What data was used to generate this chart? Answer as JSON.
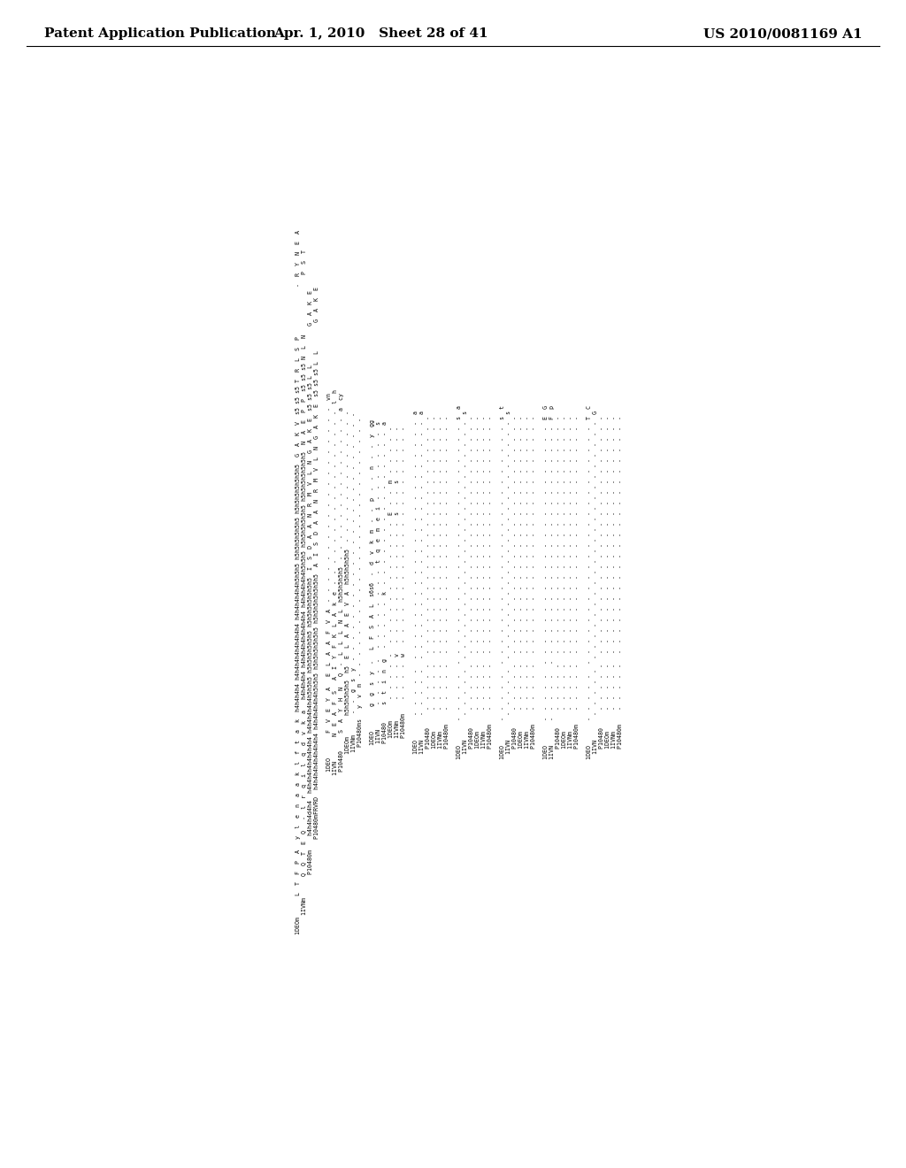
{
  "header_left": "Patent Application Publication",
  "header_center": "Apr. 1, 2010   Sheet 28 of 41",
  "header_right": "US 2010/0081169 A1",
  "page_width": 10.24,
  "page_height": 13.2,
  "dpi": 100,
  "content_fontsize": 5.0,
  "row_labels": [
    "1DEOm",
    "1IVNm",
    "P10480m",
    "1DEO",
    "1IVN",
    "P10480",
    "1DEOm",
    "1IVNm",
    "P10480ms"
  ],
  "alignment_block": [
    "L T F P A  y  l  e  n  a  a  k  l  f  t  a  k  h4h4h4h4 h4h4h4h4h4h4h4h4 h4h4h4h4h4b5b5b5 b5b5b5b5b5b5 b5b5b5b5b5b5b5  G  A  K  V  s5s5s5  s5  T  R  L  S  P  -  -  -  -  -  -  R  Y  N  E  A",
    "Q  Q  T  E  Q  -  l  r  q  i  l  q  d  v  k  a  h4h4h4h4 h4h4h4h4h4h4h4h4 h4h4h4h4h4b5b5b5 b5b5b5b5b5b5 b5b5b5b5b5b5b5  N  A  E  P  P  s5s5s5  s5  N  L  N  -  -  -  -  -  -  -  P  S  T",
    "h4h4h4h4h4 h4h4h4h4h4h4h4h4 h4h4h4h4h4b5b5b5 b5b5b5b5b5b5 b5b5b5b5b5b5b5  I  S  D  A  A  N  R  M  V  L  N  G  A  K  E  s5s5s5  s5  L  L  -  -  -  -  G  A  K  E",
    "P10480mFRVRD h4h4h4h4h4h4h4h4 h4h4h4h4h4b5b5b5 b5b5b5b5b5b5 b5b5b5b5b5b5b5  A  I  S  D  A  A  N  R  M  V  L  N  G  A  K  E  s5s5s5  s5  L  L  -  -  -  -  G  A  K  E"
  ]
}
